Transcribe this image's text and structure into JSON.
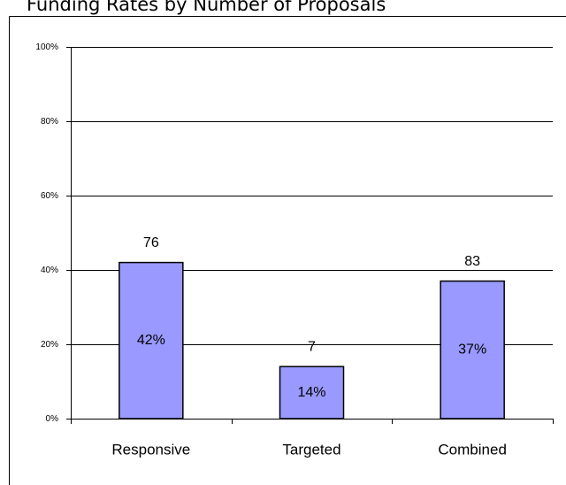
{
  "chart_data": {
    "type": "bar",
    "title": "Funding Rates by Number of Proposals",
    "categories": [
      "Responsive",
      "Targeted",
      "Combined"
    ],
    "values": [
      42,
      14,
      37
    ],
    "value_labels": [
      "42%",
      "14%",
      "37%"
    ],
    "counts": [
      76,
      7,
      83
    ],
    "color": "#9999ff",
    "ylim": [
      0,
      100
    ],
    "yticks": [
      {
        "value": 0,
        "label": "0%"
      },
      {
        "value": 20,
        "label": "20%"
      },
      {
        "value": 40,
        "label": "40%"
      },
      {
        "value": 60,
        "label": "60%"
      },
      {
        "value": 80,
        "label": "80%"
      },
      {
        "value": 100,
        "label": "100%"
      }
    ],
    "grid": true
  }
}
